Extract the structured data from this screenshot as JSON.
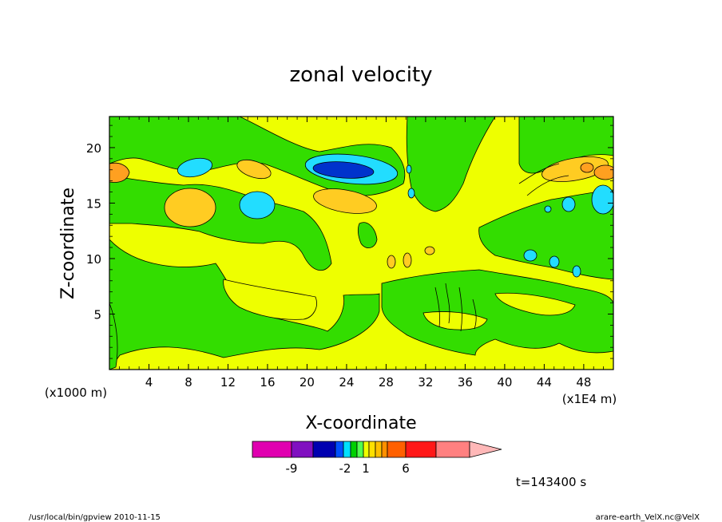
{
  "chart_data": {
    "type": "heatmap",
    "title": "zonal velocity",
    "xlabel": "X-coordinate",
    "ylabel": "Z-coordinate",
    "x_unit_label": "(x1E4 m)",
    "y_unit_label": "(x1000 m)",
    "xlim": [
      0,
      51
    ],
    "ylim": [
      0,
      22.8
    ],
    "x_ticks": [
      "4",
      "8",
      "12",
      "16",
      "20",
      "24",
      "28",
      "32",
      "36",
      "40",
      "44",
      "48"
    ],
    "y_ticks": [
      "5",
      "10",
      "15",
      "20"
    ],
    "time_label": "t=143400 s",
    "colorbar": {
      "tick_labels": [
        "-9",
        "-2",
        "1",
        "6"
      ],
      "colors": [
        "#e000b0",
        "#8010c0",
        "#0000b0",
        "#0050ff",
        "#00e0ff",
        "#00d000",
        "#50ff50",
        "#f0ff00",
        "#ffe000",
        "#ffc000",
        "#ff9000",
        "#ff6000",
        "#ff1818",
        "#ff8080",
        "#ffb8b8"
      ],
      "extend": "max"
    },
    "colors": {
      "green": "#33dd00",
      "yellow": "#eeff00",
      "light_orange": "#ffcc22",
      "orange": "#ffa020",
      "cyan": "#22ddff",
      "light_blue": "#44aaff",
      "blue": "#0033cc"
    }
  },
  "footer": {
    "left": "/usr/local/bin/gpview   2010-11-15",
    "right": "arare-earth_VelX.nc@VelX"
  }
}
